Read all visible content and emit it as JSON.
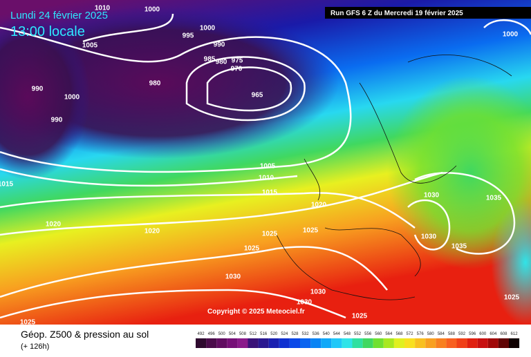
{
  "header": {
    "valid_date": "Lundi 24 février 2025",
    "local_time": "13:00 locale",
    "run": "Run GFS 6 Z du Mercredi 19 février 2025"
  },
  "copyright": "Copyright © 2025 Meteociel.fr",
  "footer": {
    "title": "Géop. Z500 & pression au sol",
    "lead": "(+ 126h)"
  },
  "isobar_labels": [
    1010,
    1000,
    1000,
    995,
    990,
    1005,
    985,
    980,
    975,
    970,
    980,
    965,
    990,
    1000,
    990,
    1005,
    1010,
    1015,
    1015,
    1020,
    1020,
    1020,
    1025,
    1025,
    1025,
    1030,
    1035,
    1030,
    1035,
    1030,
    1030,
    1030,
    1025,
    1025,
    1025,
    1000
  ],
  "legend": {
    "values": [
      492,
      496,
      500,
      504,
      508,
      512,
      516,
      520,
      524,
      528,
      532,
      536,
      540,
      544,
      548,
      552,
      556,
      560,
      564,
      568,
      572,
      576,
      580,
      584,
      588,
      592,
      596,
      600,
      604,
      608,
      612
    ],
    "colors": [
      "#2e0a2e",
      "#4a0c4a",
      "#600d60",
      "#761077",
      "#8a1a8a",
      "#3a1278",
      "#2a1890",
      "#1a20b0",
      "#0f30d0",
      "#0a48e8",
      "#0a64f0",
      "#0a84f4",
      "#10a8f8",
      "#20c8f8",
      "#30e4e8",
      "#30e0a0",
      "#40d860",
      "#70e030",
      "#a8e820",
      "#e0f020",
      "#f8e020",
      "#f8c020",
      "#f8a020",
      "#f88020",
      "#f86020",
      "#f04018",
      "#e02010",
      "#c81010",
      "#a00808",
      "#600404",
      "#100000"
    ]
  }
}
